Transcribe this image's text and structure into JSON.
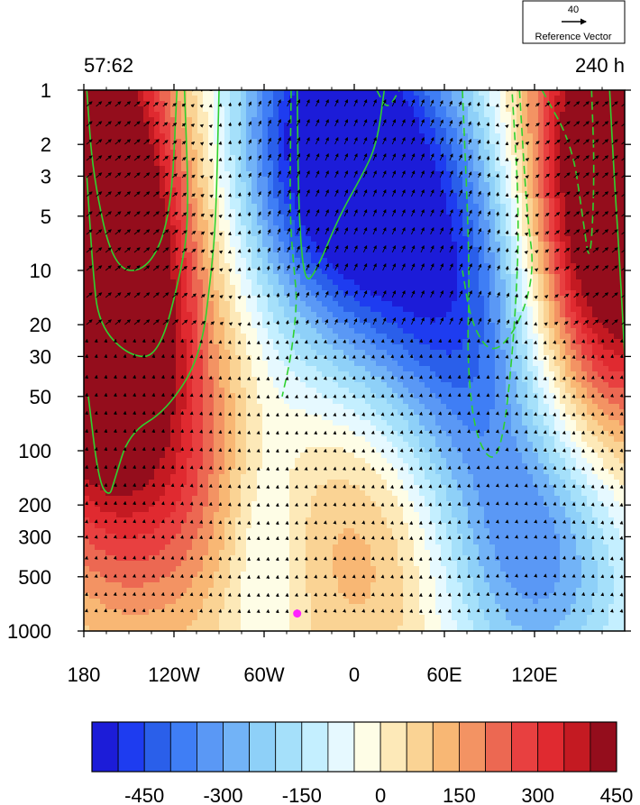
{
  "chart_data": {
    "type": "heatmap",
    "title_left": "57:62",
    "title_right": "240 h",
    "x_axis": {
      "range": [
        180,
        540
      ],
      "ticks": [
        {
          "value": 180,
          "label": "180"
        },
        {
          "value": 240,
          "label": "120W"
        },
        {
          "value": 300,
          "label": "60W"
        },
        {
          "value": 360,
          "label": "0"
        },
        {
          "value": 420,
          "label": "60E"
        },
        {
          "value": 480,
          "label": "120E"
        }
      ]
    },
    "y_axis": {
      "scale": "log",
      "direction": "decreasing-upward",
      "range": [
        1000,
        1
      ],
      "ticks": [
        {
          "value": 1,
          "label": "1"
        },
        {
          "value": 2,
          "label": "2"
        },
        {
          "value": 3,
          "label": "3"
        },
        {
          "value": 5,
          "label": "5"
        },
        {
          "value": 10,
          "label": "10"
        },
        {
          "value": 20,
          "label": "20"
        },
        {
          "value": 30,
          "label": "30"
        },
        {
          "value": 50,
          "label": "50"
        },
        {
          "value": 100,
          "label": "100"
        },
        {
          "value": 200,
          "label": "200"
        },
        {
          "value": 300,
          "label": "300"
        },
        {
          "value": 500,
          "label": "500"
        },
        {
          "value": 1000,
          "label": "1000"
        }
      ]
    },
    "colorbar": {
      "levels": [
        -525,
        -475,
        -425,
        -375,
        -325,
        -275,
        -225,
        -175,
        -125,
        -75,
        -25,
        25,
        75,
        125,
        175,
        225,
        275,
        325,
        375,
        425,
        475,
        525
      ],
      "colors": [
        "#1c1cd8",
        "#1e3cf0",
        "#2a5fea",
        "#3f7ef5",
        "#5a98f5",
        "#72b3f7",
        "#8ed0f8",
        "#a5e0fa",
        "#c4efff",
        "#e6f9ff",
        "#fefde6",
        "#fde9b8",
        "#fad394",
        "#f8b774",
        "#f39363",
        "#ec6852",
        "#e84040",
        "#e02a30",
        "#c41a22",
        "#940d1c"
      ],
      "tick_labels": [
        {
          "value": -450,
          "label": "-450"
        },
        {
          "value": -300,
          "label": "-300"
        },
        {
          "value": -150,
          "label": "-150"
        },
        {
          "value": 0,
          "label": "0"
        },
        {
          "value": 150,
          "label": "150"
        },
        {
          "value": 300,
          "label": "300"
        },
        {
          "value": 450,
          "label": "450"
        }
      ]
    },
    "anomaly_centers": [
      {
        "lon": 195,
        "p": 7,
        "value": 560,
        "sigma_lon": 38,
        "sigma_logp": 0.95
      },
      {
        "lon": 218,
        "p": 60,
        "value": 250,
        "sigma_lon": 48,
        "sigma_logp": 0.9
      },
      {
        "lon": 180,
        "p": 3,
        "value": 380,
        "sigma_lon": 20,
        "sigma_logp": 0.8
      },
      {
        "lon": 540,
        "p": 2,
        "value": 600,
        "sigma_lon": 50,
        "sigma_logp": 0.85
      },
      {
        "lon": 515,
        "p": 15,
        "value": 280,
        "sigma_lon": 45,
        "sigma_logp": 0.8
      },
      {
        "lon": 345,
        "p": 1.8,
        "value": -560,
        "sigma_lon": 45,
        "sigma_logp": 0.7
      },
      {
        "lon": 420,
        "p": 10,
        "value": -420,
        "sigma_lon": 55,
        "sigma_logp": 0.8
      },
      {
        "lon": 460,
        "p": 100,
        "value": -220,
        "sigma_lon": 45,
        "sigma_logp": 0.9
      },
      {
        "lon": 495,
        "p": 400,
        "value": -200,
        "sigma_lon": 40,
        "sigma_logp": 0.5
      },
      {
        "lon": 375,
        "p": 250,
        "value": 200,
        "sigma_lon": 45,
        "sigma_logp": 0.7
      },
      {
        "lon": 300,
        "p": 350,
        "value": -110,
        "sigma_lon": 18,
        "sigma_logp": 0.5
      },
      {
        "lon": 250,
        "p": 200,
        "value": 55,
        "sigma_lon": 30,
        "sigma_logp": 0.5
      }
    ],
    "contours": [
      {
        "style": "solid",
        "points": [
          [
            182,
            1
          ],
          [
            186,
            3
          ],
          [
            200,
            10
          ],
          [
            223,
            10
          ],
          [
            238,
            5
          ],
          [
            242,
            1
          ]
        ]
      },
      {
        "style": "solid",
        "points": [
          [
            247,
            1
          ],
          [
            250,
            5
          ],
          [
            245,
            10
          ],
          [
            230,
            30
          ],
          [
            210,
            30
          ],
          [
            190,
            20
          ],
          [
            186,
            10
          ],
          [
            182,
            3
          ]
        ]
      },
      {
        "style": "solid",
        "points": [
          [
            270,
            1
          ],
          [
            268,
            5
          ],
          [
            265,
            10
          ],
          [
            258,
            30
          ],
          [
            235,
            60
          ],
          [
            210,
            80
          ],
          [
            200,
            150
          ],
          [
            197,
            180
          ],
          [
            190,
            150
          ],
          [
            183,
            50
          ]
        ]
      },
      {
        "style": "solid",
        "points": [
          [
            322,
            1
          ],
          [
            323,
            5
          ],
          [
            327,
            12
          ],
          [
            335,
            10
          ],
          [
            350,
            5
          ],
          [
            365,
            3
          ],
          [
            375,
            2
          ],
          [
            380,
            1
          ]
        ]
      },
      {
        "style": "dashed",
        "points": [
          [
            318,
            1
          ],
          [
            317,
            5
          ],
          [
            320,
            10
          ],
          [
            322,
            15
          ],
          [
            318,
            30
          ],
          [
            312,
            50
          ]
        ]
      },
      {
        "style": "dashed",
        "points": [
          [
            375,
            1
          ],
          [
            382,
            1.3
          ],
          [
            390,
            1
          ]
        ]
      },
      {
        "style": "dashed",
        "points": [
          [
            432,
            1
          ],
          [
            437,
            10
          ],
          [
            435,
            30
          ],
          [
            440,
            80
          ],
          [
            452,
            120
          ],
          [
            460,
            80
          ],
          [
            467,
            20
          ],
          [
            470,
            5
          ],
          [
            465,
            1
          ]
        ]
      },
      {
        "style": "dashed",
        "points": [
          [
            470,
            1
          ],
          [
            475,
            5
          ],
          [
            480,
            10
          ],
          [
            470,
            20
          ],
          [
            452,
            30
          ],
          [
            438,
            20
          ],
          [
            432,
            10
          ]
        ]
      },
      {
        "style": "dashed",
        "points": [
          [
            485,
            1
          ],
          [
            505,
            2
          ],
          [
            512,
            5
          ],
          [
            517,
            10
          ],
          [
            520,
            3
          ],
          [
            518,
            1
          ]
        ]
      },
      {
        "style": "solid",
        "points": [
          [
            530,
            1
          ],
          [
            533,
            3
          ],
          [
            537,
            10
          ],
          [
            540,
            30
          ]
        ]
      }
    ],
    "marker": {
      "lon": 322,
      "p": 800,
      "color": "#ff22ff"
    },
    "reference_vector": {
      "magnitude": "40",
      "label": "Reference Vector"
    }
  }
}
